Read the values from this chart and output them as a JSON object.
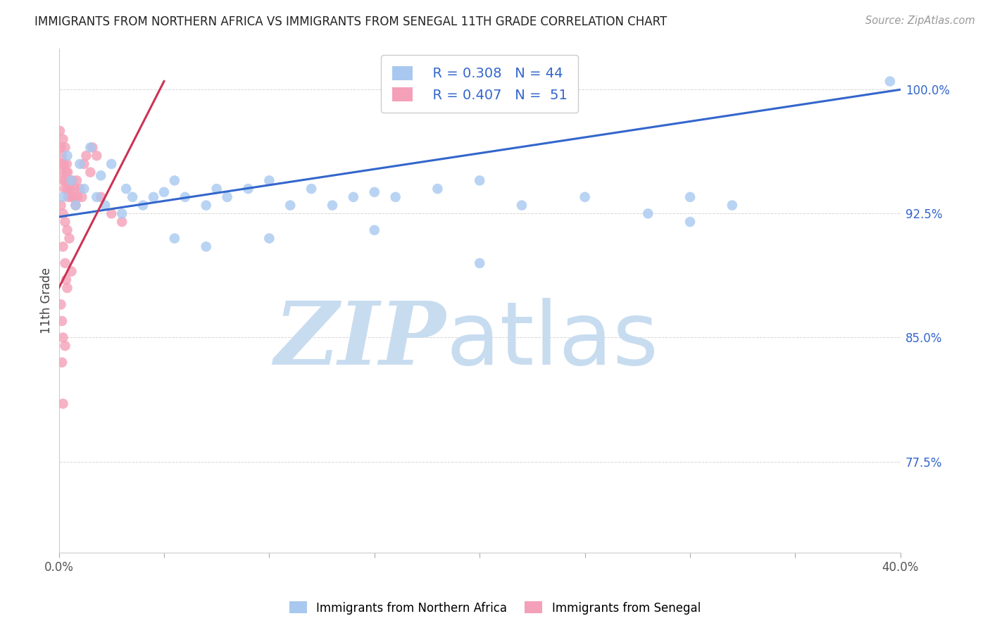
{
  "title": "IMMIGRANTS FROM NORTHERN AFRICA VS IMMIGRANTS FROM SENEGAL 11TH GRADE CORRELATION CHART",
  "source": "Source: ZipAtlas.com",
  "ylabel": "11th Grade",
  "y_ticks": [
    77.5,
    85.0,
    92.5,
    100.0
  ],
  "y_tick_labels": [
    "77.5%",
    "85.0%",
    "92.5%",
    "100.0%"
  ],
  "x_min": 0.0,
  "x_max": 40.0,
  "y_min": 72.0,
  "y_max": 102.5,
  "blue_R": 0.308,
  "blue_N": 44,
  "pink_R": 0.407,
  "pink_N": 51,
  "blue_color": "#A8C8F0",
  "pink_color": "#F4A0B8",
  "blue_line_color": "#3366CC",
  "pink_line_color": "#CC3355",
  "blue_scatter": [
    [
      0.2,
      93.5
    ],
    [
      0.4,
      96.0
    ],
    [
      0.6,
      94.5
    ],
    [
      0.8,
      93.0
    ],
    [
      1.0,
      95.5
    ],
    [
      1.2,
      94.0
    ],
    [
      1.5,
      96.5
    ],
    [
      1.8,
      93.5
    ],
    [
      2.0,
      94.8
    ],
    [
      2.2,
      93.0
    ],
    [
      2.5,
      95.5
    ],
    [
      3.0,
      92.5
    ],
    [
      3.2,
      94.0
    ],
    [
      3.5,
      93.5
    ],
    [
      4.0,
      93.0
    ],
    [
      4.5,
      93.5
    ],
    [
      5.0,
      93.8
    ],
    [
      5.5,
      94.5
    ],
    [
      6.0,
      93.5
    ],
    [
      7.0,
      93.0
    ],
    [
      7.5,
      94.0
    ],
    [
      8.0,
      93.5
    ],
    [
      9.0,
      94.0
    ],
    [
      10.0,
      94.5
    ],
    [
      11.0,
      93.0
    ],
    [
      12.0,
      94.0
    ],
    [
      13.0,
      93.0
    ],
    [
      14.0,
      93.5
    ],
    [
      15.0,
      93.8
    ],
    [
      16.0,
      93.5
    ],
    [
      18.0,
      94.0
    ],
    [
      20.0,
      94.5
    ],
    [
      22.0,
      93.0
    ],
    [
      25.0,
      93.5
    ],
    [
      28.0,
      92.5
    ],
    [
      30.0,
      93.5
    ],
    [
      32.0,
      93.0
    ],
    [
      5.5,
      91.0
    ],
    [
      7.0,
      90.5
    ],
    [
      10.0,
      91.0
    ],
    [
      15.0,
      91.5
    ],
    [
      20.0,
      89.5
    ],
    [
      30.0,
      92.0
    ],
    [
      39.5,
      100.5
    ]
  ],
  "pink_scatter": [
    [
      0.05,
      97.5
    ],
    [
      0.1,
      96.5
    ],
    [
      0.12,
      95.0
    ],
    [
      0.15,
      96.0
    ],
    [
      0.18,
      95.5
    ],
    [
      0.2,
      97.0
    ],
    [
      0.22,
      94.5
    ],
    [
      0.25,
      95.5
    ],
    [
      0.28,
      94.0
    ],
    [
      0.3,
      96.5
    ],
    [
      0.32,
      94.5
    ],
    [
      0.35,
      95.0
    ],
    [
      0.38,
      95.5
    ],
    [
      0.4,
      94.0
    ],
    [
      0.42,
      95.0
    ],
    [
      0.45,
      93.5
    ],
    [
      0.5,
      94.5
    ],
    [
      0.55,
      94.0
    ],
    [
      0.6,
      93.5
    ],
    [
      0.65,
      94.5
    ],
    [
      0.7,
      93.5
    ],
    [
      0.75,
      94.0
    ],
    [
      0.8,
      93.0
    ],
    [
      0.85,
      94.5
    ],
    [
      0.9,
      93.5
    ],
    [
      1.0,
      94.0
    ],
    [
      1.1,
      93.5
    ],
    [
      1.2,
      95.5
    ],
    [
      1.3,
      96.0
    ],
    [
      1.5,
      95.0
    ],
    [
      1.6,
      96.5
    ],
    [
      1.8,
      96.0
    ],
    [
      2.0,
      93.5
    ],
    [
      2.5,
      92.5
    ],
    [
      3.0,
      92.0
    ],
    [
      0.1,
      93.0
    ],
    [
      0.2,
      92.5
    ],
    [
      0.3,
      92.0
    ],
    [
      0.4,
      91.5
    ],
    [
      0.5,
      91.0
    ],
    [
      0.2,
      90.5
    ],
    [
      0.3,
      89.5
    ],
    [
      0.35,
      88.5
    ],
    [
      0.4,
      88.0
    ],
    [
      0.6,
      89.0
    ],
    [
      0.1,
      87.0
    ],
    [
      0.15,
      86.0
    ],
    [
      0.2,
      85.0
    ],
    [
      0.3,
      84.5
    ],
    [
      0.15,
      83.5
    ],
    [
      0.2,
      81.0
    ]
  ],
  "blue_trendline": [
    [
      0.0,
      92.3
    ],
    [
      40.0,
      100.0
    ]
  ],
  "pink_trendline": [
    [
      0.0,
      88.0
    ],
    [
      5.0,
      100.5
    ]
  ],
  "watermark_zip": "ZIP",
  "watermark_atlas": "atlas",
  "watermark_color": "#C8DCF0",
  "legend_R_blue": "R = 0.308",
  "legend_N_blue": "N = 44",
  "legend_R_pink": "R = 0.407",
  "legend_N_pink": "N =  51",
  "grid_color": "#CCCCCC",
  "background_color": "#FFFFFF"
}
